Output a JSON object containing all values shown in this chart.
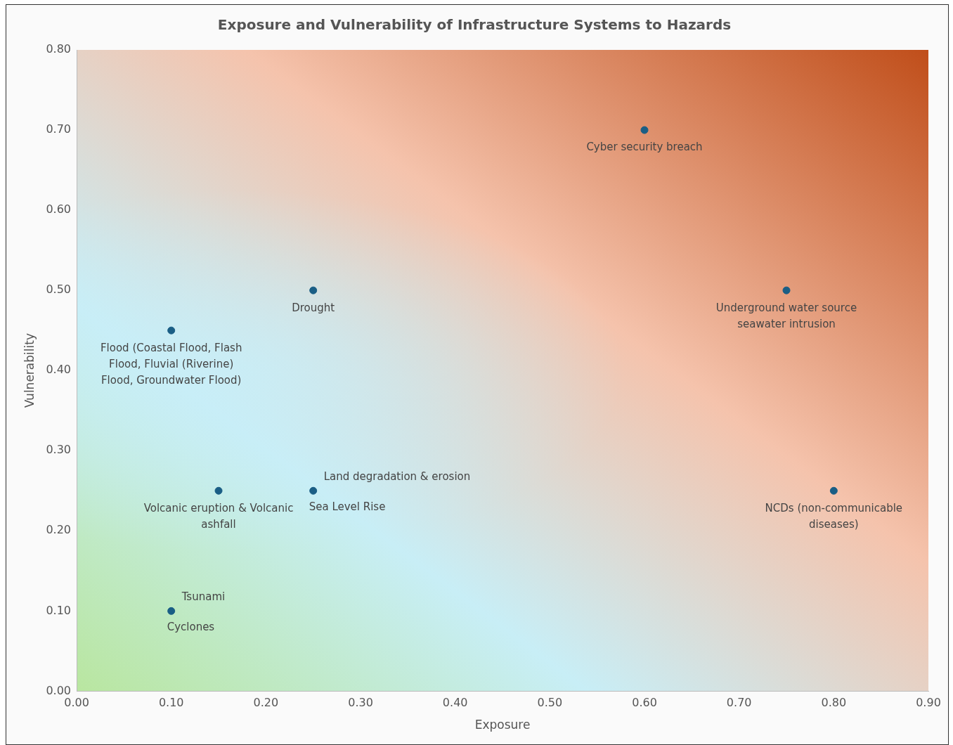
{
  "chart_data": {
    "type": "scatter",
    "title": "Exposure and Vulnerability of Infrastructure Systems to Hazards",
    "xlabel": "Exposure",
    "ylabel": "Vulnerability",
    "x": [
      0.6,
      0.25,
      0.75,
      0.1,
      0.25,
      0.15,
      0.8,
      0.1
    ],
    "series": [
      {
        "color": "#1a5e85",
        "values": [
          0.7,
          0.5,
          0.5,
          0.45,
          0.25,
          0.25,
          0.25,
          0.1
        ]
      }
    ],
    "marker": "circle",
    "legend": false,
    "grid": false,
    "xlim": [
      0,
      0.9
    ],
    "xticks": [
      {
        "value": 0,
        "label": "0.00"
      },
      {
        "value": 0.1,
        "label": "0.10"
      },
      {
        "value": 0.2,
        "label": "0.20"
      },
      {
        "value": 0.3,
        "label": "0.30"
      },
      {
        "value": 0.4,
        "label": "0.40"
      },
      {
        "value": 0.5,
        "label": "0.50"
      },
      {
        "value": 0.6,
        "label": "0.60"
      },
      {
        "value": 0.7,
        "label": "0.70"
      },
      {
        "value": 0.8,
        "label": "0.80"
      },
      {
        "value": 0.9,
        "label": "0.90"
      }
    ],
    "ylim": [
      0,
      0.8
    ],
    "yticks": [
      {
        "value": 0,
        "label": "0.00"
      },
      {
        "value": 0.1,
        "label": "0.10"
      },
      {
        "value": 0.2,
        "label": "0.20"
      },
      {
        "value": 0.3,
        "label": "0.30"
      },
      {
        "value": 0.4,
        "label": "0.40"
      },
      {
        "value": 0.5,
        "label": "0.50"
      },
      {
        "value": 0.6,
        "label": "0.60"
      },
      {
        "value": 0.7,
        "label": "0.70"
      },
      {
        "value": 0.8,
        "label": "0.80"
      }
    ],
    "annotations": [
      {
        "text": "Cyber security breach",
        "x": 0.6,
        "y": 0.7
      },
      {
        "text": "Drought",
        "x": 0.25,
        "y": 0.5
      },
      {
        "text": "Underground water source seawater intrusion",
        "x": 0.75,
        "y": 0.5
      },
      {
        "text": "Flood (Coastal Flood, Flash Flood, Fluvial (Riverine) Flood, Groundwater Flood)",
        "x": 0.1,
        "y": 0.45
      },
      {
        "text": "Land degradation & erosion",
        "x": 0.25,
        "y": 0.25
      },
      {
        "text": "Sea Level Rise",
        "x": 0.25,
        "y": 0.25
      },
      {
        "text": "Volcanic eruption & Volcanic ashfall",
        "x": 0.15,
        "y": 0.25
      },
      {
        "text": "NCDs (non-communicable diseases)",
        "x": 0.8,
        "y": 0.25
      },
      {
        "text": "Tsunami",
        "x": 0.1,
        "y": 0.1
      },
      {
        "text": "Cyclones",
        "x": 0.1,
        "y": 0.1
      }
    ]
  }
}
